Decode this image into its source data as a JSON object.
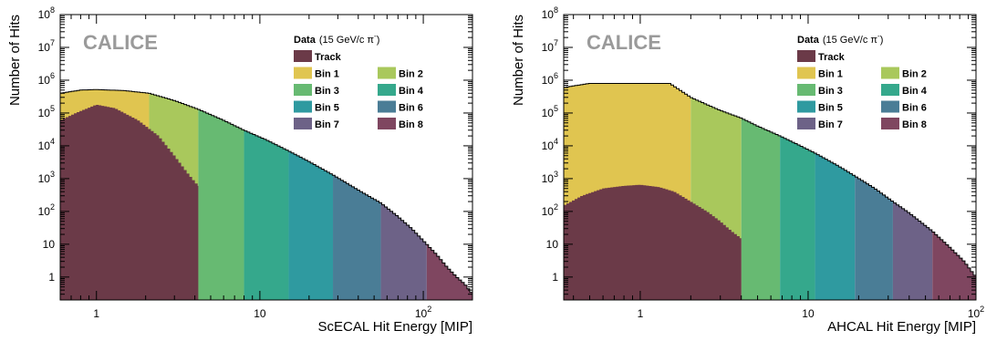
{
  "chart_data": [
    {
      "type": "area",
      "scale": {
        "x": "log",
        "y": "log"
      },
      "xlabel": "ScECAL Hit Energy [MIP]",
      "ylabel": "Number of Hits",
      "xlim": [
        0.6,
        200
      ],
      "ylim": [
        0.2,
        100000000
      ],
      "watermark": "CALICE",
      "legend": {
        "title_bold": "Data",
        "title_rest": "(15 GeV/c π",
        "title_sup": "-",
        "title_close": ")",
        "placement": "top-right",
        "entries": [
          {
            "name": "Track",
            "color": "#6b3a48"
          },
          {
            "name": "Bin 1",
            "color": "#e0c550"
          },
          {
            "name": "Bin 2",
            "color": "#a9c85c"
          },
          {
            "name": "Bin 3",
            "color": "#67ba72"
          },
          {
            "name": "Bin 4",
            "color": "#35a88c"
          },
          {
            "name": "Bin 5",
            "color": "#2f9aa0"
          },
          {
            "name": "Bin 6",
            "color": "#4a7d96"
          },
          {
            "name": "Bin 7",
            "color": "#6d6287"
          },
          {
            "name": "Bin 8",
            "color": "#7f4660"
          }
        ]
      },
      "x_ticks": [
        {
          "value": 1,
          "label": "1"
        },
        {
          "value": 10,
          "label": "10"
        },
        {
          "value": 100,
          "label": "10",
          "sup": "2"
        }
      ],
      "bin_edges": [
        0.6,
        2.1,
        4.2,
        8.0,
        15.0,
        28.0,
        55.0,
        105.0,
        200.0
      ],
      "total": {
        "x": [
          0.6,
          0.8,
          1.0,
          1.5,
          2.1,
          3,
          4.2,
          6,
          8,
          11,
          15,
          20,
          28,
          40,
          55,
          70,
          85,
          105,
          120,
          140,
          160,
          180,
          200
        ],
        "y": [
          400000,
          500000,
          520000,
          480000,
          400000,
          240000,
          130000,
          60000,
          30000,
          15000,
          7000,
          3300,
          1300,
          450,
          180,
          70,
          30,
          10,
          5,
          2,
          1,
          0.6,
          0.3
        ]
      },
      "track": {
        "x": [
          0.6,
          0.75,
          1.0,
          1.3,
          1.8,
          2.4,
          3.0,
          3.6,
          4.2
        ],
        "y": [
          60000,
          100000,
          180000,
          140000,
          60000,
          20000,
          5000,
          1500,
          600
        ]
      }
    },
    {
      "type": "area",
      "scale": {
        "x": "log",
        "y": "log"
      },
      "xlabel": "AHCAL Hit Energy [MIP]",
      "ylabel": "Number of Hits",
      "xlim": [
        0.35,
        100
      ],
      "ylim": [
        0.2,
        100000000
      ],
      "watermark": "CALICE",
      "legend": {
        "title_bold": "Data",
        "title_rest": "(15 GeV/c π",
        "title_sup": "-",
        "title_close": ")",
        "placement": "top-right",
        "entries": [
          {
            "name": "Track",
            "color": "#6b3a48"
          },
          {
            "name": "Bin 1",
            "color": "#e0c550"
          },
          {
            "name": "Bin 2",
            "color": "#a9c85c"
          },
          {
            "name": "Bin 3",
            "color": "#67ba72"
          },
          {
            "name": "Bin 4",
            "color": "#35a88c"
          },
          {
            "name": "Bin 5",
            "color": "#2f9aa0"
          },
          {
            "name": "Bin 6",
            "color": "#4a7d96"
          },
          {
            "name": "Bin 7",
            "color": "#6d6287"
          },
          {
            "name": "Bin 8",
            "color": "#7f4660"
          }
        ]
      },
      "x_ticks": [
        {
          "value": 1,
          "label": "1"
        },
        {
          "value": 10,
          "label": "10"
        },
        {
          "value": 100,
          "label": "10",
          "sup": "2"
        }
      ],
      "bin_edges": [
        0.35,
        2.0,
        4.0,
        6.8,
        11.0,
        19.0,
        32.0,
        55.0,
        100.0
      ],
      "total": {
        "x": [
          0.35,
          0.5,
          1.0,
          1.5,
          2.0,
          2.5,
          3,
          4,
          5,
          6.8,
          9,
          11,
          15,
          19,
          25,
          32,
          40,
          55,
          70,
          85,
          100
        ],
        "y": [
          600000,
          800000,
          800000,
          800000,
          300000,
          180000,
          120000,
          70000,
          40000,
          20000,
          10000,
          6000,
          2500,
          1200,
          500,
          200,
          90,
          25,
          8,
          3,
          1
        ]
      },
      "track": {
        "x": [
          0.35,
          0.45,
          0.6,
          0.8,
          1.0,
          1.3,
          1.6,
          2.0,
          2.5,
          3.0,
          3.5,
          4.0
        ],
        "y": [
          150,
          300,
          500,
          600,
          650,
          550,
          400,
          200,
          100,
          50,
          25,
          15
        ]
      }
    }
  ]
}
